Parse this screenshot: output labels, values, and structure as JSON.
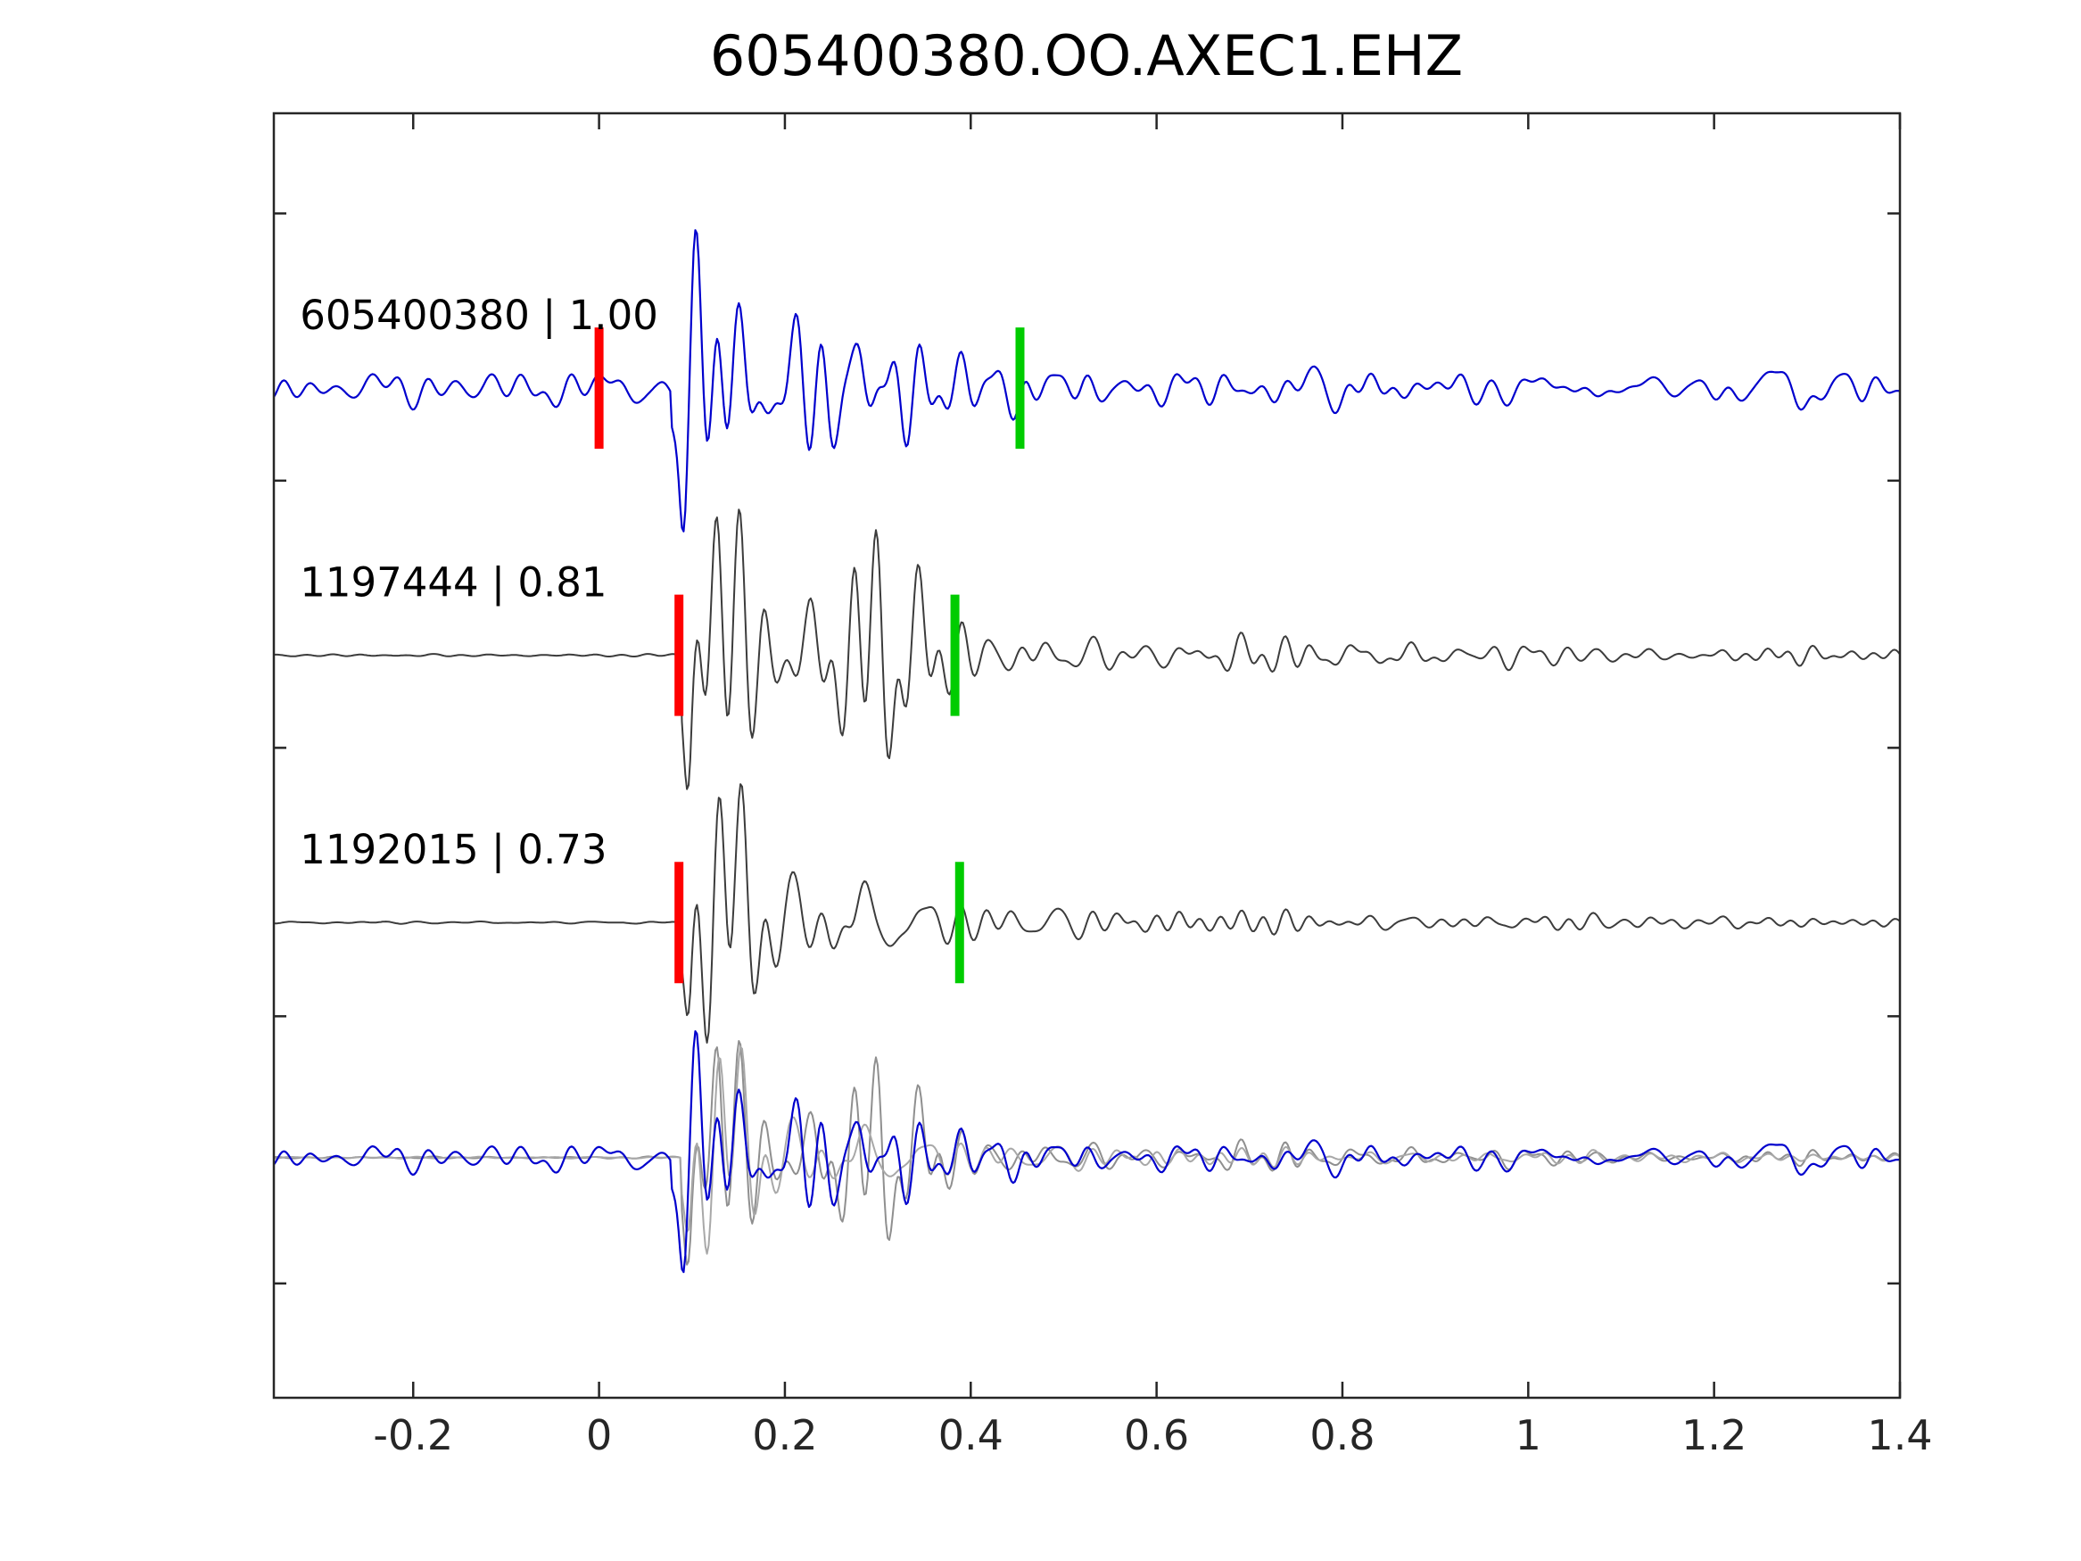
{
  "title": "605400380.OO.AXEC1.EHZ",
  "chart_data": {
    "type": "line",
    "subtype": "seismogram-template-match-stack",
    "title": "605400380.OO.AXEC1.EHZ",
    "xlabel": "",
    "ylabel": "",
    "xlim": [
      -0.35,
      1.4
    ],
    "x_ticks": [
      "-0.2",
      "0",
      "0.2",
      "0.4",
      "0.6",
      "0.8",
      "1",
      "1.2",
      "1.4"
    ],
    "x_tick_values": [
      -0.2,
      0,
      0.2,
      0.4,
      0.6,
      0.8,
      1,
      1.2,
      1.4
    ],
    "grid": false,
    "legend_position": "none",
    "background_color": "#ffffff",
    "axis_color": "#262626",
    "marker_colors": {
      "pick_red": "#ff0000",
      "pick_green": "#00cc00"
    },
    "traces": [
      {
        "label": "605400380 | 1.00",
        "event_id": "605400380",
        "correlation": 1.0,
        "color": "#0000cd",
        "pick_red_x": 0.0,
        "pick_green_x": 0.453,
        "onset_x": 0.078,
        "noise_level": 0.16,
        "rel_amplitude": 1.0,
        "waveform_seed": 7,
        "noise_seed": 101
      },
      {
        "label": "1197444 | 0.81",
        "event_id": "1197444",
        "correlation": 0.81,
        "color": "#3c3c3c",
        "pick_red_x": 0.086,
        "pick_green_x": 0.383,
        "onset_x": 0.088,
        "noise_level": 0.012,
        "rel_amplitude": 0.97,
        "waveform_seed": 13,
        "noise_seed": 102
      },
      {
        "label": "1192015 | 0.73",
        "event_id": "1192015",
        "correlation": 0.73,
        "color": "#3c3c3c",
        "pick_red_x": 0.086,
        "pick_green_x": 0.388,
        "onset_x": 0.088,
        "noise_level": 0.012,
        "rel_amplitude": 0.93,
        "waveform_seed": 21,
        "noise_seed": 103
      }
    ],
    "overlay": {
      "description": "all three waveforms superimposed, aligned on onset",
      "order": [
        1,
        2,
        0
      ],
      "colors": [
        "#8f8f8f",
        "#a8a8a8",
        "#0000cd"
      ],
      "rel_amplitude": 0.8
    }
  }
}
